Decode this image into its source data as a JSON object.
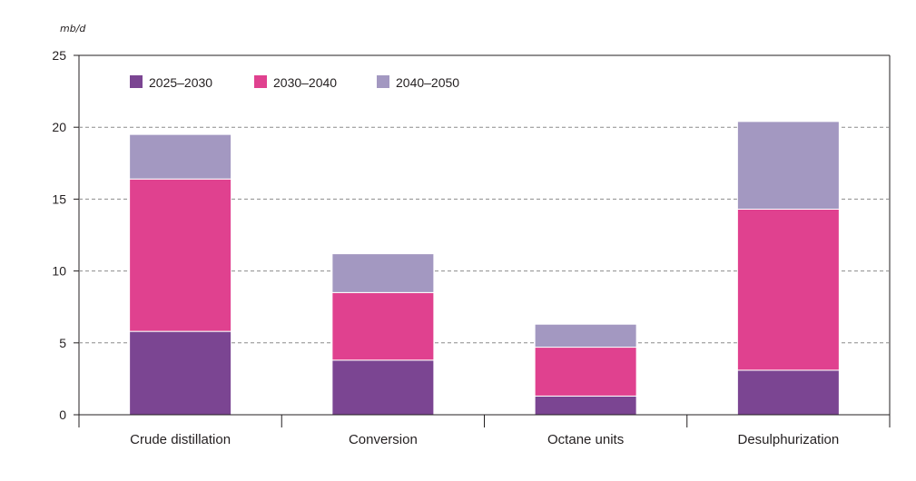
{
  "chart_data": {
    "type": "bar",
    "stacked": true,
    "unit_label": "mb/d",
    "categories": [
      "Crude distillation",
      "Conversion",
      "Octane units",
      "Desulphurization"
    ],
    "series": [
      {
        "name": "2025–2030",
        "color": "#7b4592",
        "values": [
          5.8,
          3.8,
          1.3,
          3.1
        ]
      },
      {
        "name": "2030–2040",
        "color": "#e0418f",
        "values": [
          10.6,
          4.7,
          3.4,
          11.2
        ]
      },
      {
        "name": "2040–2050",
        "color": "#a398c1",
        "values": [
          3.1,
          2.7,
          1.6,
          6.1
        ]
      }
    ],
    "ylim": [
      0,
      25
    ],
    "yticks": [
      0,
      5,
      10,
      15,
      20,
      25
    ],
    "grid": "horizontal dashed",
    "legend_position": "top-left"
  }
}
